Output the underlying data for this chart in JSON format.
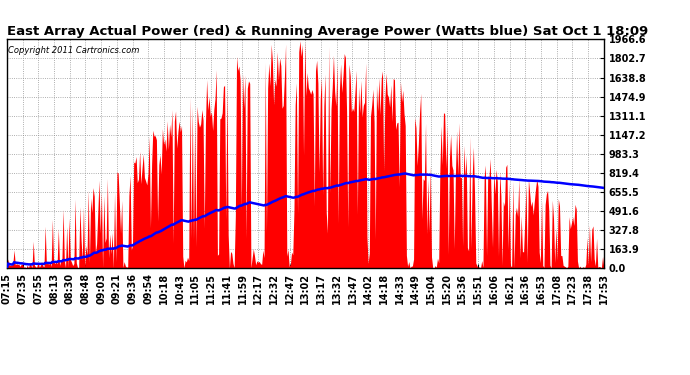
{
  "title": "East Array Actual Power (red) & Running Average Power (Watts blue) Sat Oct 1 18:09",
  "copyright": "Copyright 2011 Cartronics.com",
  "ylabel_values": [
    0.0,
    163.9,
    327.8,
    491.6,
    655.5,
    819.4,
    983.3,
    1147.2,
    1311.1,
    1474.9,
    1638.8,
    1802.7,
    1966.6
  ],
  "ymax": 1966.6,
  "ymin": 0.0,
  "x_labels": [
    "07:15",
    "07:35",
    "07:55",
    "08:13",
    "08:30",
    "08:48",
    "09:03",
    "09:21",
    "09:36",
    "09:54",
    "10:18",
    "10:43",
    "11:05",
    "11:25",
    "11:41",
    "11:59",
    "12:17",
    "12:32",
    "12:47",
    "13:02",
    "13:17",
    "13:32",
    "13:47",
    "14:02",
    "14:18",
    "14:33",
    "14:49",
    "15:04",
    "15:20",
    "15:36",
    "15:51",
    "16:06",
    "16:21",
    "16:36",
    "16:53",
    "17:08",
    "17:23",
    "17:38",
    "17:53"
  ],
  "background_color": "#ffffff",
  "plot_bg_color": "#ffffff",
  "grid_color": "#888888",
  "actual_color": "#ff0000",
  "avg_color": "#0000ff",
  "title_fontsize": 9.5,
  "tick_fontsize": 7.0
}
